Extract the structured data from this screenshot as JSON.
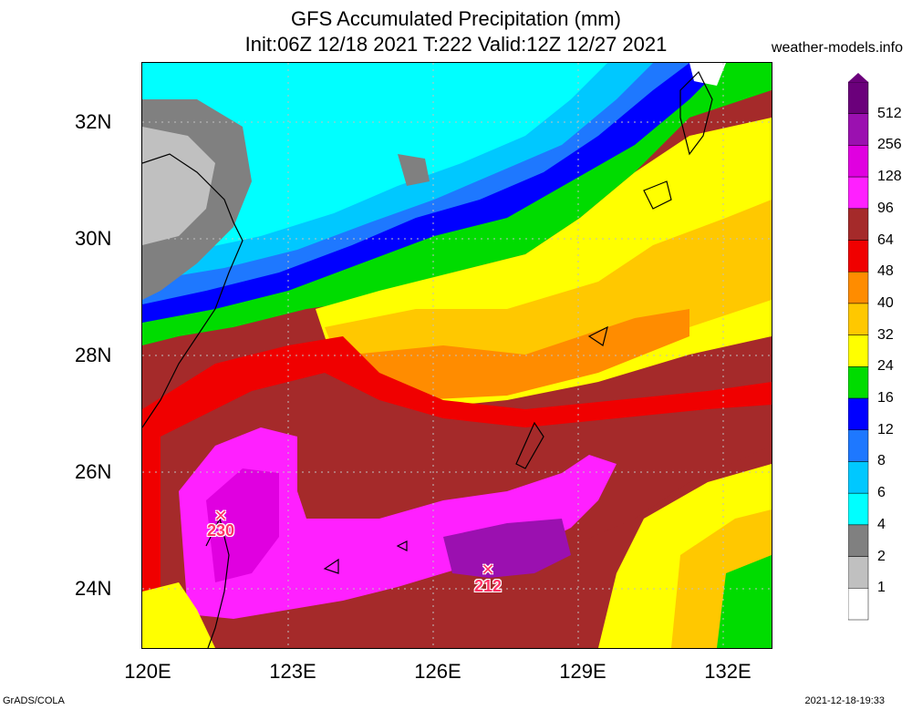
{
  "header": {
    "title_line1": "GFS Accumulated Precipitation (mm)",
    "title_line2": "Init:06Z 12/18 2021 T:222 Valid:12Z 12/27 2021",
    "site": "weather-models.info"
  },
  "map": {
    "lat_labels": [
      "32N",
      "30N",
      "28N",
      "26N",
      "24N"
    ],
    "lon_labels": [
      "120E",
      "123E",
      "126E",
      "129E",
      "132E"
    ],
    "markers": [
      {
        "value": "230"
      },
      {
        "value": "212"
      }
    ]
  },
  "colorbar": {
    "labels": [
      "512",
      "256",
      "128",
      "96",
      "64",
      "48",
      "40",
      "32",
      "24",
      "16",
      "12",
      "8",
      "6",
      "4",
      "2",
      "1"
    ],
    "colors": [
      "#6b007b",
      "#9b10b0",
      "#e000e0",
      "#ff20ff",
      "#a52a2a",
      "#f00000",
      "#ff8c00",
      "#ffc800",
      "#ffff00",
      "#00dc00",
      "#0000ff",
      "#1e78ff",
      "#00c8ff",
      "#00ffff",
      "#808080",
      "#c0c0c0",
      "#ffffff"
    ]
  },
  "footer": {
    "left": "GrADS/COLA",
    "right": "2021-12-18-19:33"
  }
}
